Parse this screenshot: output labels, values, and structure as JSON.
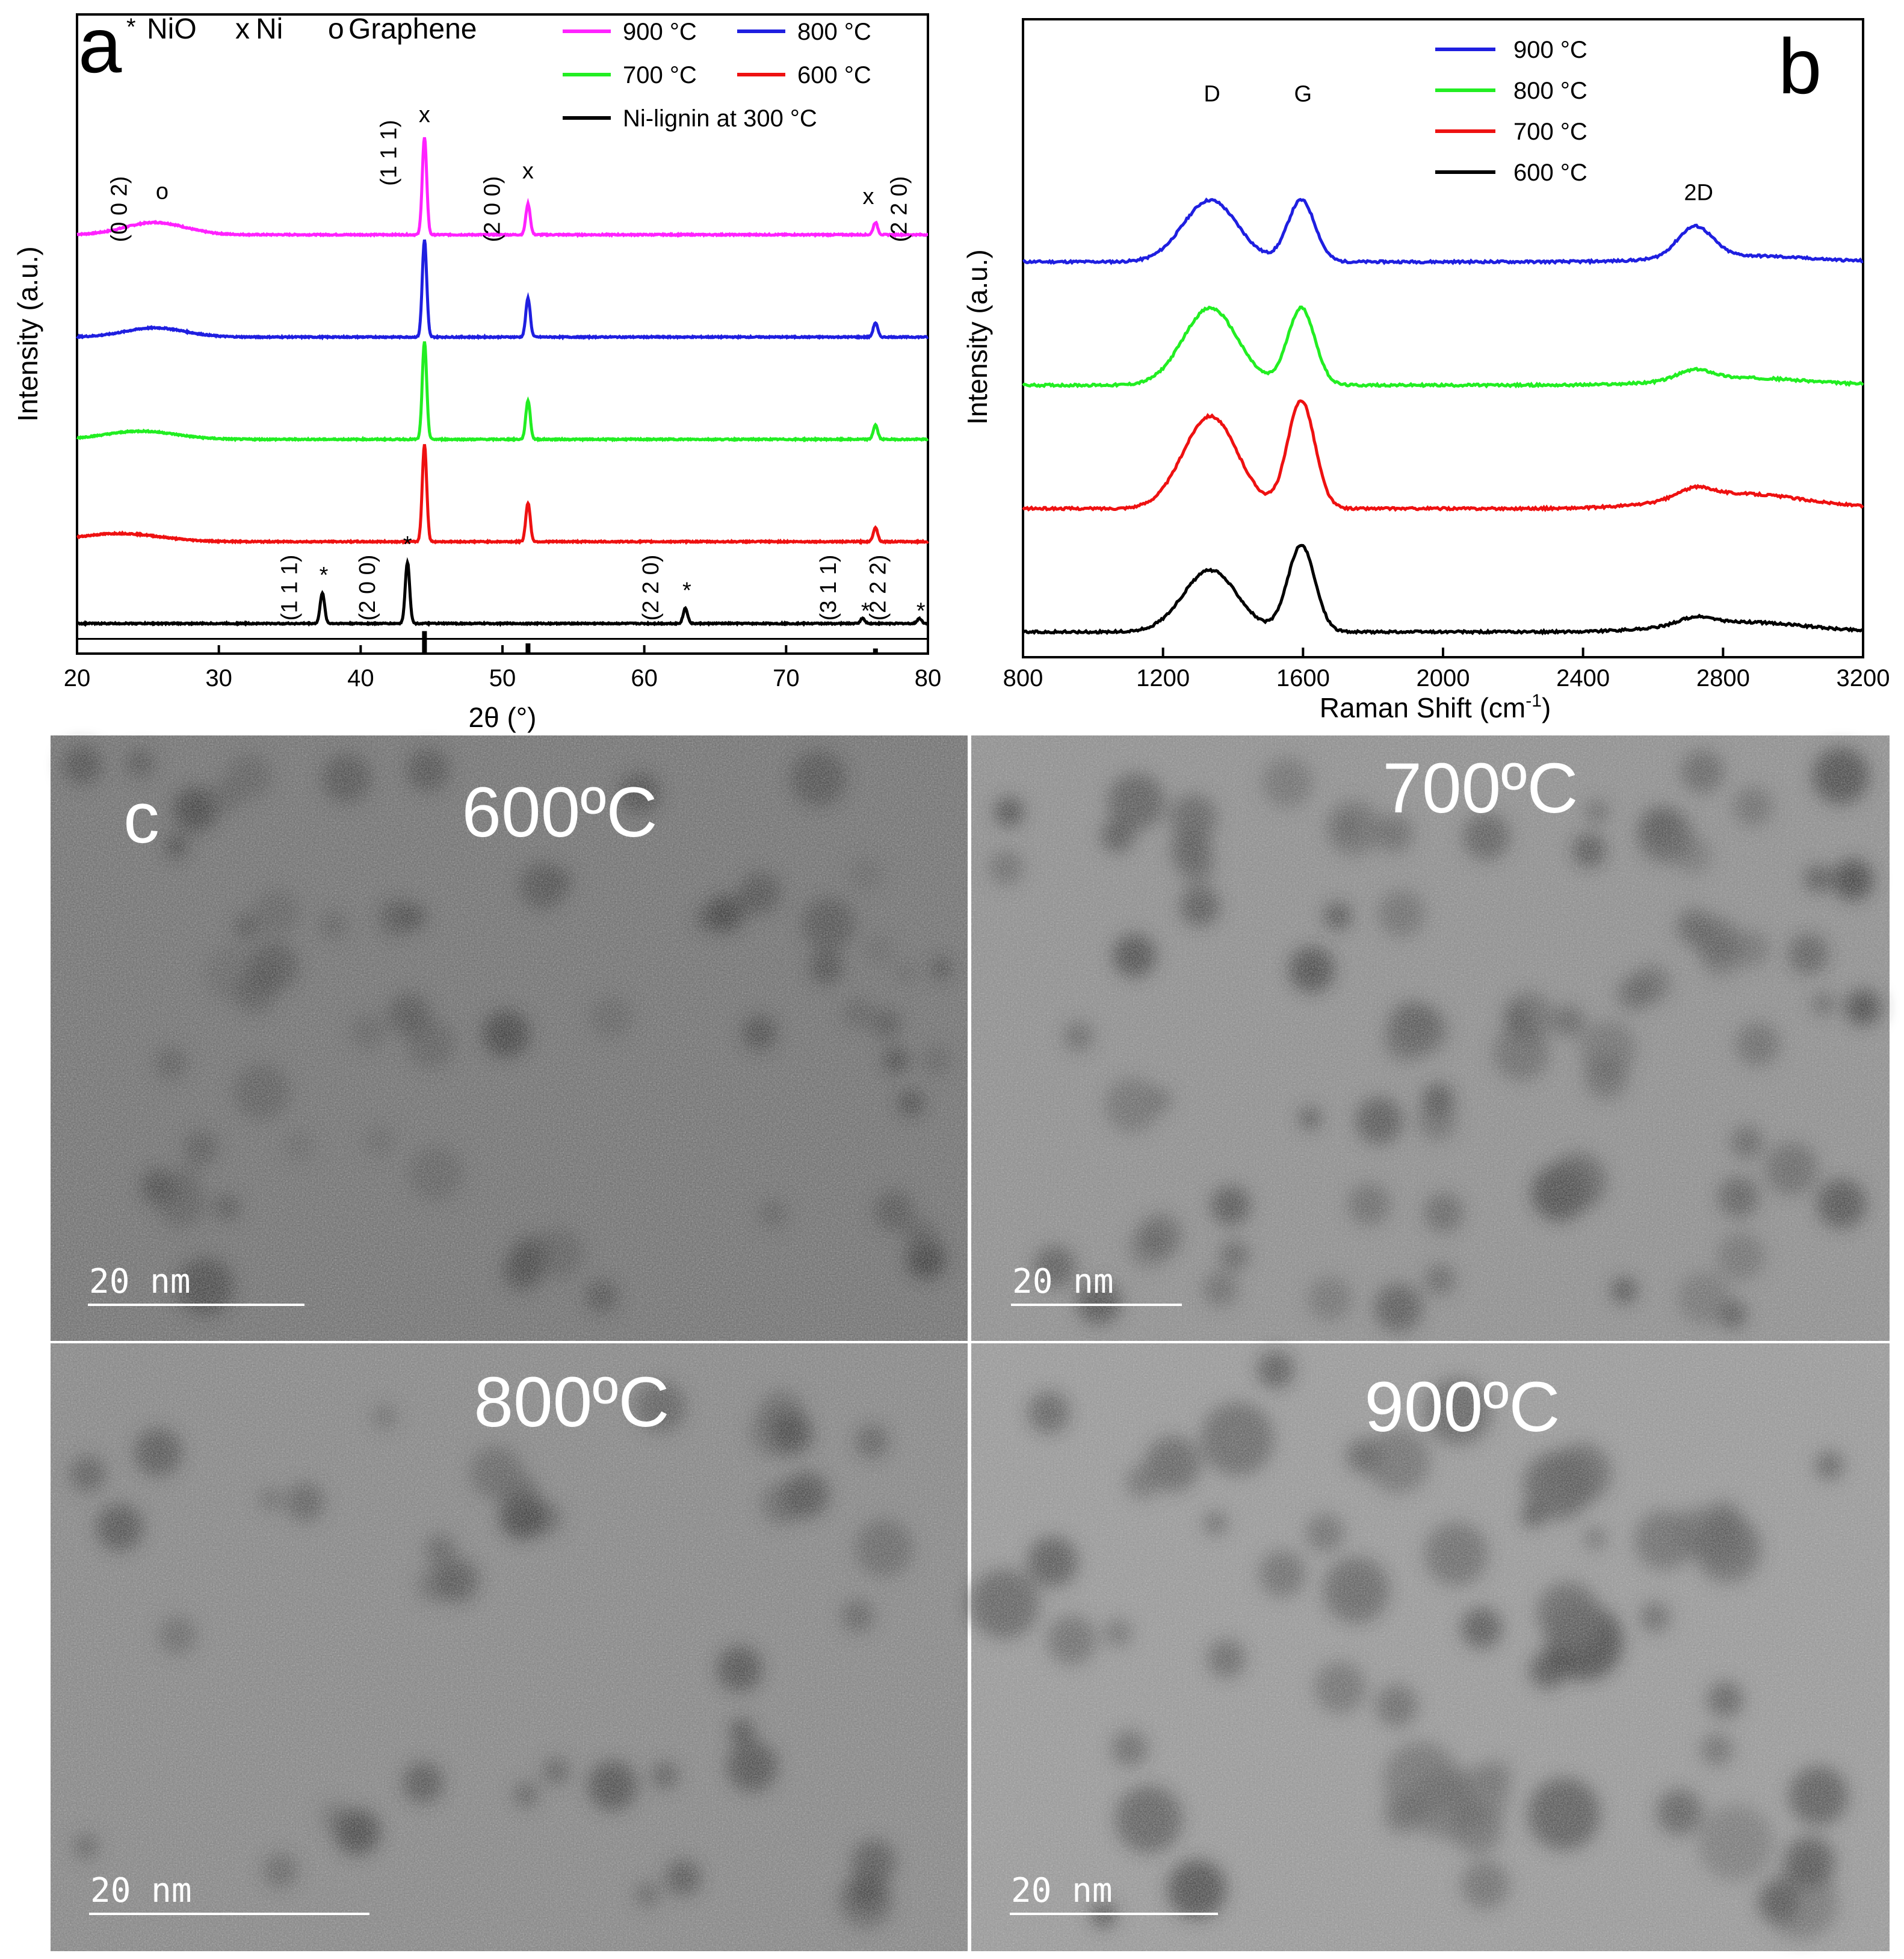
{
  "chart_data": [
    {
      "panel": "a",
      "type": "line",
      "xlabel": "2θ (°)",
      "ylabel": "Intensity (a.u.)",
      "xlim": [
        20,
        80
      ],
      "xticks": [
        "20",
        "30",
        "40",
        "50",
        "60",
        "70",
        "80"
      ],
      "marker_legend": [
        {
          "symbol": "*",
          "label": "NiO"
        },
        {
          "symbol": "x",
          "label": "Ni"
        },
        {
          "symbol": "o",
          "label": "Graphene"
        }
      ],
      "legend": [
        {
          "name": "900 °C",
          "color": "#ff22ff"
        },
        {
          "name": "800 °C",
          "color": "#1f1fe0"
        },
        {
          "name": "700 °C",
          "color": "#22ee22"
        },
        {
          "name": "600 °C",
          "color": "#ee1111"
        },
        {
          "name": "Ni-lignin at 300 °C",
          "color": "#000000"
        }
      ],
      "series": [
        {
          "name": "900 °C",
          "color": "#ff22ff",
          "offset": 4.0,
          "baseline": 0.0,
          "hump": {
            "x": 25.5,
            "h": 0.12,
            "w": 3.0
          },
          "peaks": [
            {
              "x": 44.5,
              "h": 0.95
            },
            {
              "x": 51.8,
              "h": 0.3
            },
            {
              "x": 76.3,
              "h": 0.12
            }
          ]
        },
        {
          "name": "800 °C",
          "color": "#1f1fe0",
          "offset": 3.0,
          "baseline": 0.0,
          "hump": {
            "x": 25.5,
            "h": 0.09,
            "w": 3.0
          },
          "peaks": [
            {
              "x": 44.5,
              "h": 0.95
            },
            {
              "x": 51.8,
              "h": 0.38
            },
            {
              "x": 76.3,
              "h": 0.14
            }
          ]
        },
        {
          "name": "700 °C",
          "color": "#22ee22",
          "offset": 2.0,
          "baseline": 0.0,
          "hump": {
            "x": 24.5,
            "h": 0.08,
            "w": 3.5
          },
          "peaks": [
            {
              "x": 44.5,
              "h": 0.95
            },
            {
              "x": 51.8,
              "h": 0.38
            },
            {
              "x": 76.3,
              "h": 0.14
            }
          ]
        },
        {
          "name": "600 °C",
          "color": "#ee1111",
          "offset": 1.0,
          "baseline": 0.0,
          "hump": {
            "x": 23.0,
            "h": 0.08,
            "w": 4.0
          },
          "peaks": [
            {
              "x": 44.5,
              "h": 0.95
            },
            {
              "x": 51.8,
              "h": 0.38
            },
            {
              "x": 76.3,
              "h": 0.14
            }
          ]
        },
        {
          "name": "Ni-lignin at 300 °C",
          "color": "#000000",
          "offset": 0.2,
          "baseline": 0.0,
          "hump": {
            "x": 30.0,
            "h": 0.0,
            "w": 3.0
          },
          "peaks": [
            {
              "x": 37.3,
              "h": 0.3
            },
            {
              "x": 43.3,
              "h": 0.6
            },
            {
              "x": 62.9,
              "h": 0.15
            },
            {
              "x": 75.4,
              "h": 0.05
            },
            {
              "x": 79.4,
              "h": 0.05
            }
          ]
        }
      ],
      "reference_lines": [
        {
          "x": 44.5,
          "h": 0.22
        },
        {
          "x": 51.8,
          "h": 0.1
        },
        {
          "x": 76.3,
          "h": 0.05
        }
      ],
      "peak_labels": [
        {
          "text": "(0 0 2)",
          "x": 23.5,
          "y": 4.25,
          "rot": true
        },
        {
          "text": "o",
          "x": 26.0,
          "y": 4.35,
          "rot": false
        },
        {
          "text": "(1 1 1)",
          "x": 42.5,
          "y": 4.8,
          "rot": true
        },
        {
          "text": "x",
          "x": 44.5,
          "y": 5.1,
          "rot": false
        },
        {
          "text": "(2 0 0)",
          "x": 49.8,
          "y": 4.25,
          "rot": true
        },
        {
          "text": "x",
          "x": 51.8,
          "y": 4.55,
          "rot": false
        },
        {
          "text": "x",
          "x": 75.8,
          "y": 4.3,
          "rot": false
        },
        {
          "text": "(2 2 0)",
          "x": 78.5,
          "y": 4.25,
          "rot": true
        },
        {
          "text": "(1 1 1)",
          "x": 35.5,
          "y": 0.55,
          "rot": true
        },
        {
          "text": "*",
          "x": 37.4,
          "y": 0.6,
          "rot": false
        },
        {
          "text": "(2 0 0)",
          "x": 41.0,
          "y": 0.55,
          "rot": true
        },
        {
          "text": "*",
          "x": 43.3,
          "y": 0.9,
          "rot": false
        },
        {
          "text": "(2 2 0)",
          "x": 61.0,
          "y": 0.55,
          "rot": true
        },
        {
          "text": "*",
          "x": 63.0,
          "y": 0.45,
          "rot": false
        },
        {
          "text": "(3 1 1)",
          "x": 73.5,
          "y": 0.55,
          "rot": true
        },
        {
          "text": "*",
          "x": 75.6,
          "y": 0.25,
          "rot": false
        },
        {
          "text": "(2 2 2)",
          "x": 77.0,
          "y": 0.55,
          "rot": true
        },
        {
          "text": "*",
          "x": 79.5,
          "y": 0.25,
          "rot": false
        }
      ]
    },
    {
      "panel": "b",
      "type": "line",
      "xlabel": "Raman Shift (cm-1)",
      "ylabel": "Intensity (a.u.)",
      "xlim": [
        800,
        3200
      ],
      "xticks": [
        "800",
        "1200",
        "1600",
        "2000",
        "2400",
        "2800",
        "3200"
      ],
      "legend": [
        {
          "name": "900 °C",
          "color": "#1f1fe0"
        },
        {
          "name": "800 °C",
          "color": "#22ee22"
        },
        {
          "name": "700 °C",
          "color": "#ee1111"
        },
        {
          "name": "600 °C",
          "color": "#000000"
        }
      ],
      "series": [
        {
          "name": "900 °C",
          "color": "#1f1fe0",
          "offset": 3.0,
          "D": 1.0,
          "G": 1.0,
          "band2D": 0.25,
          "broad": 0.05
        },
        {
          "name": "800 °C",
          "color": "#22ee22",
          "offset": 2.0,
          "D": 1.25,
          "G": 1.25,
          "band2D": 0.08,
          "broad": 0.06
        },
        {
          "name": "700 °C",
          "color": "#ee1111",
          "offset": 1.0,
          "D": 1.5,
          "G": 1.75,
          "band2D": 0.08,
          "broad": 0.12
        },
        {
          "name": "600 °C",
          "color": "#000000",
          "offset": 0.0,
          "D": 1.0,
          "G": 1.4,
          "band2D": 0.06,
          "broad": 0.08
        }
      ],
      "band_labels": [
        {
          "text": "D",
          "x": 1340,
          "y": 4.3
        },
        {
          "text": "G",
          "x": 1600,
          "y": 4.3
        },
        {
          "text": "2D",
          "x": 2730,
          "y": 3.5
        }
      ]
    }
  ],
  "panel_labels": {
    "a": "a",
    "b": "b",
    "c": "c"
  },
  "tem": [
    {
      "temp": "600ºC",
      "scale": "20 nm"
    },
    {
      "temp": "700ºC",
      "scale": "20 nm"
    },
    {
      "temp": "800ºC",
      "scale": "20 nm"
    },
    {
      "temp": "900ºC",
      "scale": "20 nm"
    }
  ]
}
